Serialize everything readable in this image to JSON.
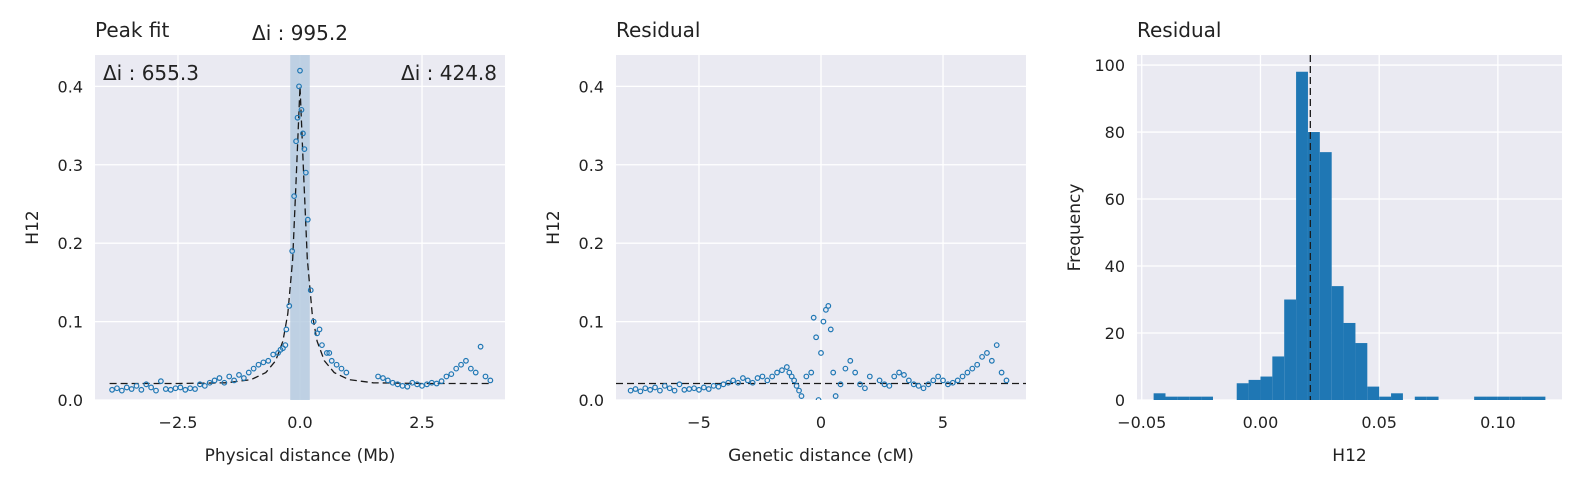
{
  "colors": {
    "background": "#ffffff",
    "axes_face": "#eaeaf2",
    "grid": "#ffffff",
    "marker": "#1f77b4",
    "bar": "#1f77b4",
    "band": "#b3c9df",
    "fit_line": "#1a1a1a"
  },
  "chart_data": [
    {
      "type": "scatter",
      "title": "Peak fit",
      "xlabel": "Physical distance (Mb)",
      "ylabel": "H12",
      "xlim": [
        -4.2,
        4.2
      ],
      "ylim": [
        0,
        0.44
      ],
      "xticks": [
        -2.5,
        0,
        2.5
      ],
      "xtick_labels": [
        "−2.5",
        "0.0",
        "2.5"
      ],
      "yticks": [
        0,
        0.1,
        0.2,
        0.3,
        0.4
      ],
      "ytick_labels": [
        "0.0",
        "0.1",
        "0.2",
        "0.3",
        "0.4"
      ],
      "grid": true,
      "baseline": 0.021,
      "fit_line": {
        "style": "dashed",
        "x": [
          -3.9,
          -2.5,
          -1.5,
          -1.0,
          -0.7,
          -0.5,
          -0.35,
          -0.25,
          -0.15,
          -0.08,
          0.0,
          0.08,
          0.15,
          0.25,
          0.35,
          0.5,
          0.7,
          1.0,
          1.5,
          2.5,
          3.9
        ],
        "y": [
          0.021,
          0.021,
          0.022,
          0.026,
          0.035,
          0.05,
          0.075,
          0.11,
          0.18,
          0.28,
          0.4,
          0.28,
          0.18,
          0.11,
          0.075,
          0.05,
          0.035,
          0.026,
          0.022,
          0.021,
          0.021
        ]
      },
      "band": [
        -0.2,
        0.2
      ],
      "annotations": [
        {
          "label": "Δi : 995.2",
          "position": "above-center"
        },
        {
          "label": "Δi : 655.3",
          "position": "top-left"
        },
        {
          "label": "Δi : 424.8",
          "position": "top-right"
        }
      ],
      "points": {
        "x": [
          -3.85,
          -3.75,
          -3.65,
          -3.55,
          -3.45,
          -3.35,
          -3.25,
          -3.15,
          -3.05,
          -2.95,
          -2.85,
          -2.75,
          -2.65,
          -2.55,
          -2.45,
          -2.35,
          -2.25,
          -2.15,
          -2.05,
          -1.95,
          -1.85,
          -1.75,
          -1.65,
          -1.55,
          -1.45,
          -1.35,
          -1.25,
          -1.15,
          -1.05,
          -0.95,
          -0.85,
          -0.75,
          -0.65,
          -0.55,
          -0.45,
          -0.35,
          -0.28,
          -0.22,
          -0.16,
          -0.12,
          -0.08,
          -0.05,
          -0.02,
          0.0,
          0.03,
          0.06,
          0.09,
          0.12,
          0.16,
          0.22,
          0.28,
          0.35,
          0.45,
          0.55,
          0.65,
          0.75,
          0.85,
          0.95,
          1.6,
          1.7,
          1.8,
          1.9,
          2.0,
          2.1,
          2.2,
          2.3,
          2.4,
          2.5,
          2.6,
          2.7,
          2.8,
          2.9,
          3.0,
          3.1,
          3.2,
          3.3,
          3.4,
          3.5,
          3.6,
          3.7,
          3.8,
          3.9,
          -0.4,
          -0.3,
          0.4,
          0.6
        ],
        "y": [
          0.013,
          0.015,
          0.012,
          0.016,
          0.014,
          0.018,
          0.013,
          0.02,
          0.016,
          0.012,
          0.024,
          0.014,
          0.013,
          0.015,
          0.016,
          0.013,
          0.015,
          0.014,
          0.02,
          0.018,
          0.022,
          0.025,
          0.028,
          0.022,
          0.03,
          0.025,
          0.032,
          0.028,
          0.035,
          0.04,
          0.045,
          0.048,
          0.05,
          0.058,
          0.06,
          0.066,
          0.09,
          0.12,
          0.19,
          0.26,
          0.33,
          0.36,
          0.4,
          0.42,
          0.37,
          0.34,
          0.32,
          0.29,
          0.23,
          0.14,
          0.1,
          0.085,
          0.07,
          0.06,
          0.05,
          0.045,
          0.04,
          0.035,
          0.03,
          0.028,
          0.025,
          0.022,
          0.02,
          0.018,
          0.017,
          0.022,
          0.02,
          0.018,
          0.02,
          0.022,
          0.021,
          0.024,
          0.03,
          0.033,
          0.04,
          0.045,
          0.05,
          0.04,
          0.035,
          0.068,
          0.03,
          0.025,
          0.064,
          0.07,
          0.09,
          0.06
        ]
      }
    },
    {
      "type": "scatter",
      "title": "Residual",
      "xlabel": "Genetic distance (cM)",
      "ylabel": "H12",
      "xlim": [
        -8.4,
        8.4
      ],
      "ylim": [
        0,
        0.44
      ],
      "xticks": [
        -5,
        0,
        5
      ],
      "xtick_labels": [
        "−5",
        "0",
        "5"
      ],
      "yticks": [
        0,
        0.1,
        0.2,
        0.3,
        0.4
      ],
      "ytick_labels": [
        "0.0",
        "0.1",
        "0.2",
        "0.3",
        "0.4"
      ],
      "grid": true,
      "baseline": 0.021,
      "points": {
        "x": [
          -7.8,
          -7.6,
          -7.4,
          -7.2,
          -7.0,
          -6.8,
          -6.6,
          -6.4,
          -6.2,
          -6.0,
          -5.8,
          -5.6,
          -5.4,
          -5.2,
          -5.0,
          -4.8,
          -4.6,
          -4.4,
          -4.2,
          -4.0,
          -3.8,
          -3.6,
          -3.4,
          -3.2,
          -3.0,
          -2.8,
          -2.6,
          -2.4,
          -2.2,
          -2.0,
          -1.8,
          -1.6,
          -1.4,
          -1.3,
          -1.2,
          -1.1,
          -1.0,
          -0.9,
          -0.8,
          -0.6,
          -0.4,
          -0.3,
          -0.2,
          -0.1,
          0.0,
          0.1,
          0.2,
          0.3,
          0.4,
          0.5,
          0.6,
          0.8,
          1.0,
          1.2,
          1.4,
          1.6,
          1.8,
          2.0,
          2.4,
          2.6,
          2.8,
          3.0,
          3.2,
          3.4,
          3.6,
          3.8,
          4.0,
          4.2,
          4.4,
          4.6,
          4.8,
          5.0,
          5.2,
          5.4,
          5.6,
          5.8,
          6.0,
          6.2,
          6.4,
          6.6,
          6.8,
          7.0,
          7.2,
          7.4,
          7.6
        ],
        "y": [
          0.012,
          0.014,
          0.011,
          0.015,
          0.013,
          0.016,
          0.012,
          0.018,
          0.015,
          0.012,
          0.02,
          0.013,
          0.014,
          0.015,
          0.013,
          0.016,
          0.014,
          0.018,
          0.017,
          0.02,
          0.022,
          0.025,
          0.022,
          0.028,
          0.025,
          0.022,
          0.028,
          0.03,
          0.025,
          0.03,
          0.035,
          0.038,
          0.042,
          0.035,
          0.03,
          0.025,
          0.018,
          0.012,
          0.005,
          0.03,
          0.035,
          0.105,
          0.08,
          0.0,
          0.06,
          0.1,
          0.115,
          0.12,
          0.09,
          0.035,
          0.005,
          0.02,
          0.04,
          0.05,
          0.035,
          0.02,
          0.015,
          0.03,
          0.025,
          0.02,
          0.018,
          0.03,
          0.035,
          0.032,
          0.025,
          0.02,
          0.018,
          0.015,
          0.02,
          0.025,
          0.03,
          0.025,
          0.02,
          0.022,
          0.025,
          0.03,
          0.035,
          0.04,
          0.045,
          0.055,
          0.06,
          0.05,
          0.07,
          0.035,
          0.025
        ]
      }
    },
    {
      "type": "bar",
      "title": "Residual",
      "xlabel": "H12",
      "ylabel": "Frequency",
      "xlim": [
        -0.052,
        0.127
      ],
      "ylim": [
        0,
        103
      ],
      "xticks": [
        -0.05,
        0.0,
        0.05,
        0.1
      ],
      "xtick_labels": [
        "−0.05",
        "0.00",
        "0.05",
        "0.10"
      ],
      "yticks": [
        0,
        20,
        40,
        60,
        80,
        100
      ],
      "ytick_labels": [
        "0",
        "20",
        "40",
        "60",
        "80",
        "100"
      ],
      "grid": true,
      "vline": 0.021,
      "bin_edges": [
        -0.045,
        -0.04,
        -0.035,
        -0.03,
        -0.025,
        -0.02,
        -0.015,
        -0.01,
        -0.005,
        0.0,
        0.005,
        0.01,
        0.015,
        0.02,
        0.025,
        0.03,
        0.035,
        0.04,
        0.045,
        0.05,
        0.055,
        0.06,
        0.065,
        0.07,
        0.075,
        0.08,
        0.085,
        0.09,
        0.095,
        0.1,
        0.105,
        0.11,
        0.115,
        0.12
      ],
      "counts": [
        2,
        1,
        1,
        1,
        1,
        0,
        0,
        5,
        6,
        7,
        13,
        30,
        98,
        80,
        74,
        34,
        23,
        17,
        4,
        1,
        2,
        0,
        1,
        1,
        0,
        0,
        0,
        1,
        1,
        1,
        1,
        1,
        1
      ]
    }
  ]
}
